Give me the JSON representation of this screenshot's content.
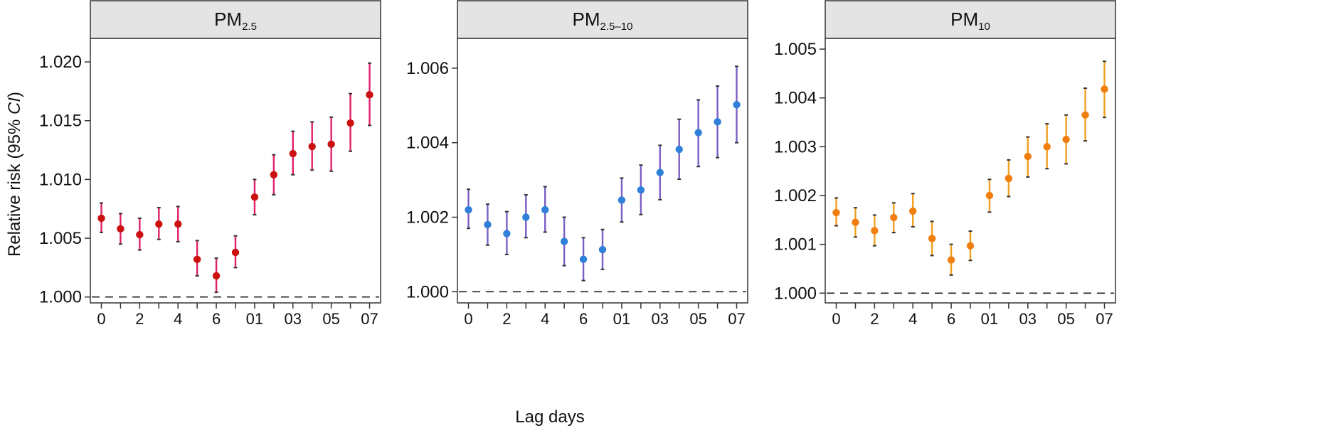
{
  "figure": {
    "ylabel_prefix": "Relative risk (95% ",
    "ylabel_italic": "CI",
    "ylabel_suffix": ")",
    "xlabel": "Lag days"
  },
  "chart_data": [
    {
      "type": "scatter",
      "title_main": "PM",
      "title_sub": "2.5",
      "ylim": [
        0.9995,
        1.022
      ],
      "yticks": [
        1.0,
        1.005,
        1.01,
        1.015,
        1.02
      ],
      "ytick_labels": [
        "1.000",
        "1.005",
        "1.010",
        "1.015",
        "1.020"
      ],
      "reference_line": 1.0,
      "x_labels": [
        "0",
        "2",
        "4",
        "6",
        "01",
        "03",
        "05",
        "07"
      ],
      "point_color": "#cc1111",
      "bar_color": "#e0206a",
      "series": [
        {
          "estimate": [
            1.0067,
            1.0058,
            1.0053,
            1.0062,
            1.0062,
            1.0032,
            1.0018,
            1.0038,
            1.0085,
            1.0104,
            1.0122,
            1.0128,
            1.013,
            1.0148,
            1.0172
          ],
          "lower": [
            1.0055,
            1.0045,
            1.004,
            1.0049,
            1.0047,
            1.0018,
            1.0004,
            1.0025,
            1.007,
            1.0087,
            1.0104,
            1.0108,
            1.0107,
            1.0124,
            1.0146
          ],
          "upper": [
            1.008,
            1.0071,
            1.0067,
            1.0076,
            1.0077,
            1.0048,
            1.0033,
            1.0052,
            1.01,
            1.0121,
            1.0141,
            1.0149,
            1.0153,
            1.0173,
            1.0199
          ]
        }
      ]
    },
    {
      "type": "scatter",
      "title_main": "PM",
      "title_sub": "2.5–10",
      "ylim": [
        0.9997,
        1.0068
      ],
      "yticks": [
        1.0,
        1.002,
        1.004,
        1.006
      ],
      "ytick_labels": [
        "1.000",
        "1.002",
        "1.004",
        "1.006"
      ],
      "reference_line": 1.0,
      "x_labels": [
        "0",
        "2",
        "4",
        "6",
        "01",
        "03",
        "05",
        "07"
      ],
      "point_color": "#2f80d8",
      "bar_color": "#7a5fc4",
      "series": [
        {
          "estimate": [
            1.0022,
            1.0018,
            1.00156,
            1.002,
            1.0022,
            1.00135,
            1.00087,
            1.00113,
            1.00246,
            1.00273,
            1.0032,
            1.00382,
            1.00427,
            1.00456,
            1.00502
          ],
          "lower": [
            1.0017,
            1.00125,
            1.001,
            1.00145,
            1.0016,
            1.0007,
            1.0003,
            1.0006,
            1.00187,
            1.00207,
            1.00247,
            1.00302,
            1.00336,
            1.0036,
            1.004
          ],
          "upper": [
            1.00275,
            1.00235,
            1.00215,
            1.0026,
            1.00282,
            1.002,
            1.00145,
            1.00167,
            1.00305,
            1.0034,
            1.00393,
            1.00463,
            1.00515,
            1.00552,
            1.00605
          ]
        }
      ]
    },
    {
      "type": "scatter",
      "title_main": "PM",
      "title_sub": "10",
      "ylim": [
        0.9998,
        1.00522
      ],
      "yticks": [
        1.0,
        1.001,
        1.002,
        1.003,
        1.004,
        1.005
      ],
      "ytick_labels": [
        "1.000",
        "1.001",
        "1.002",
        "1.003",
        "1.004",
        "1.005"
      ],
      "reference_line": 1.0,
      "x_labels": [
        "0",
        "2",
        "4",
        "6",
        "01",
        "03",
        "05",
        "07"
      ],
      "point_color": "#f07f10",
      "bar_color": "#f0a020",
      "series": [
        {
          "estimate": [
            1.00165,
            1.00145,
            1.00128,
            1.00155,
            1.00168,
            1.00112,
            1.00068,
            1.00097,
            1.002,
            1.00235,
            1.0028,
            1.003,
            1.00315,
            1.00365,
            1.00418
          ],
          "lower": [
            1.00138,
            1.00115,
            1.00097,
            1.00124,
            1.00136,
            1.00077,
            1.00037,
            1.00067,
            1.00166,
            1.00198,
            1.00238,
            1.00255,
            1.00265,
            1.00312,
            1.0036
          ],
          "upper": [
            1.00195,
            1.00175,
            1.0016,
            1.00185,
            1.00204,
            1.00147,
            1.001,
            1.00127,
            1.00233,
            1.00273,
            1.0032,
            1.00347,
            1.00365,
            1.0042,
            1.00475
          ]
        }
      ]
    }
  ]
}
